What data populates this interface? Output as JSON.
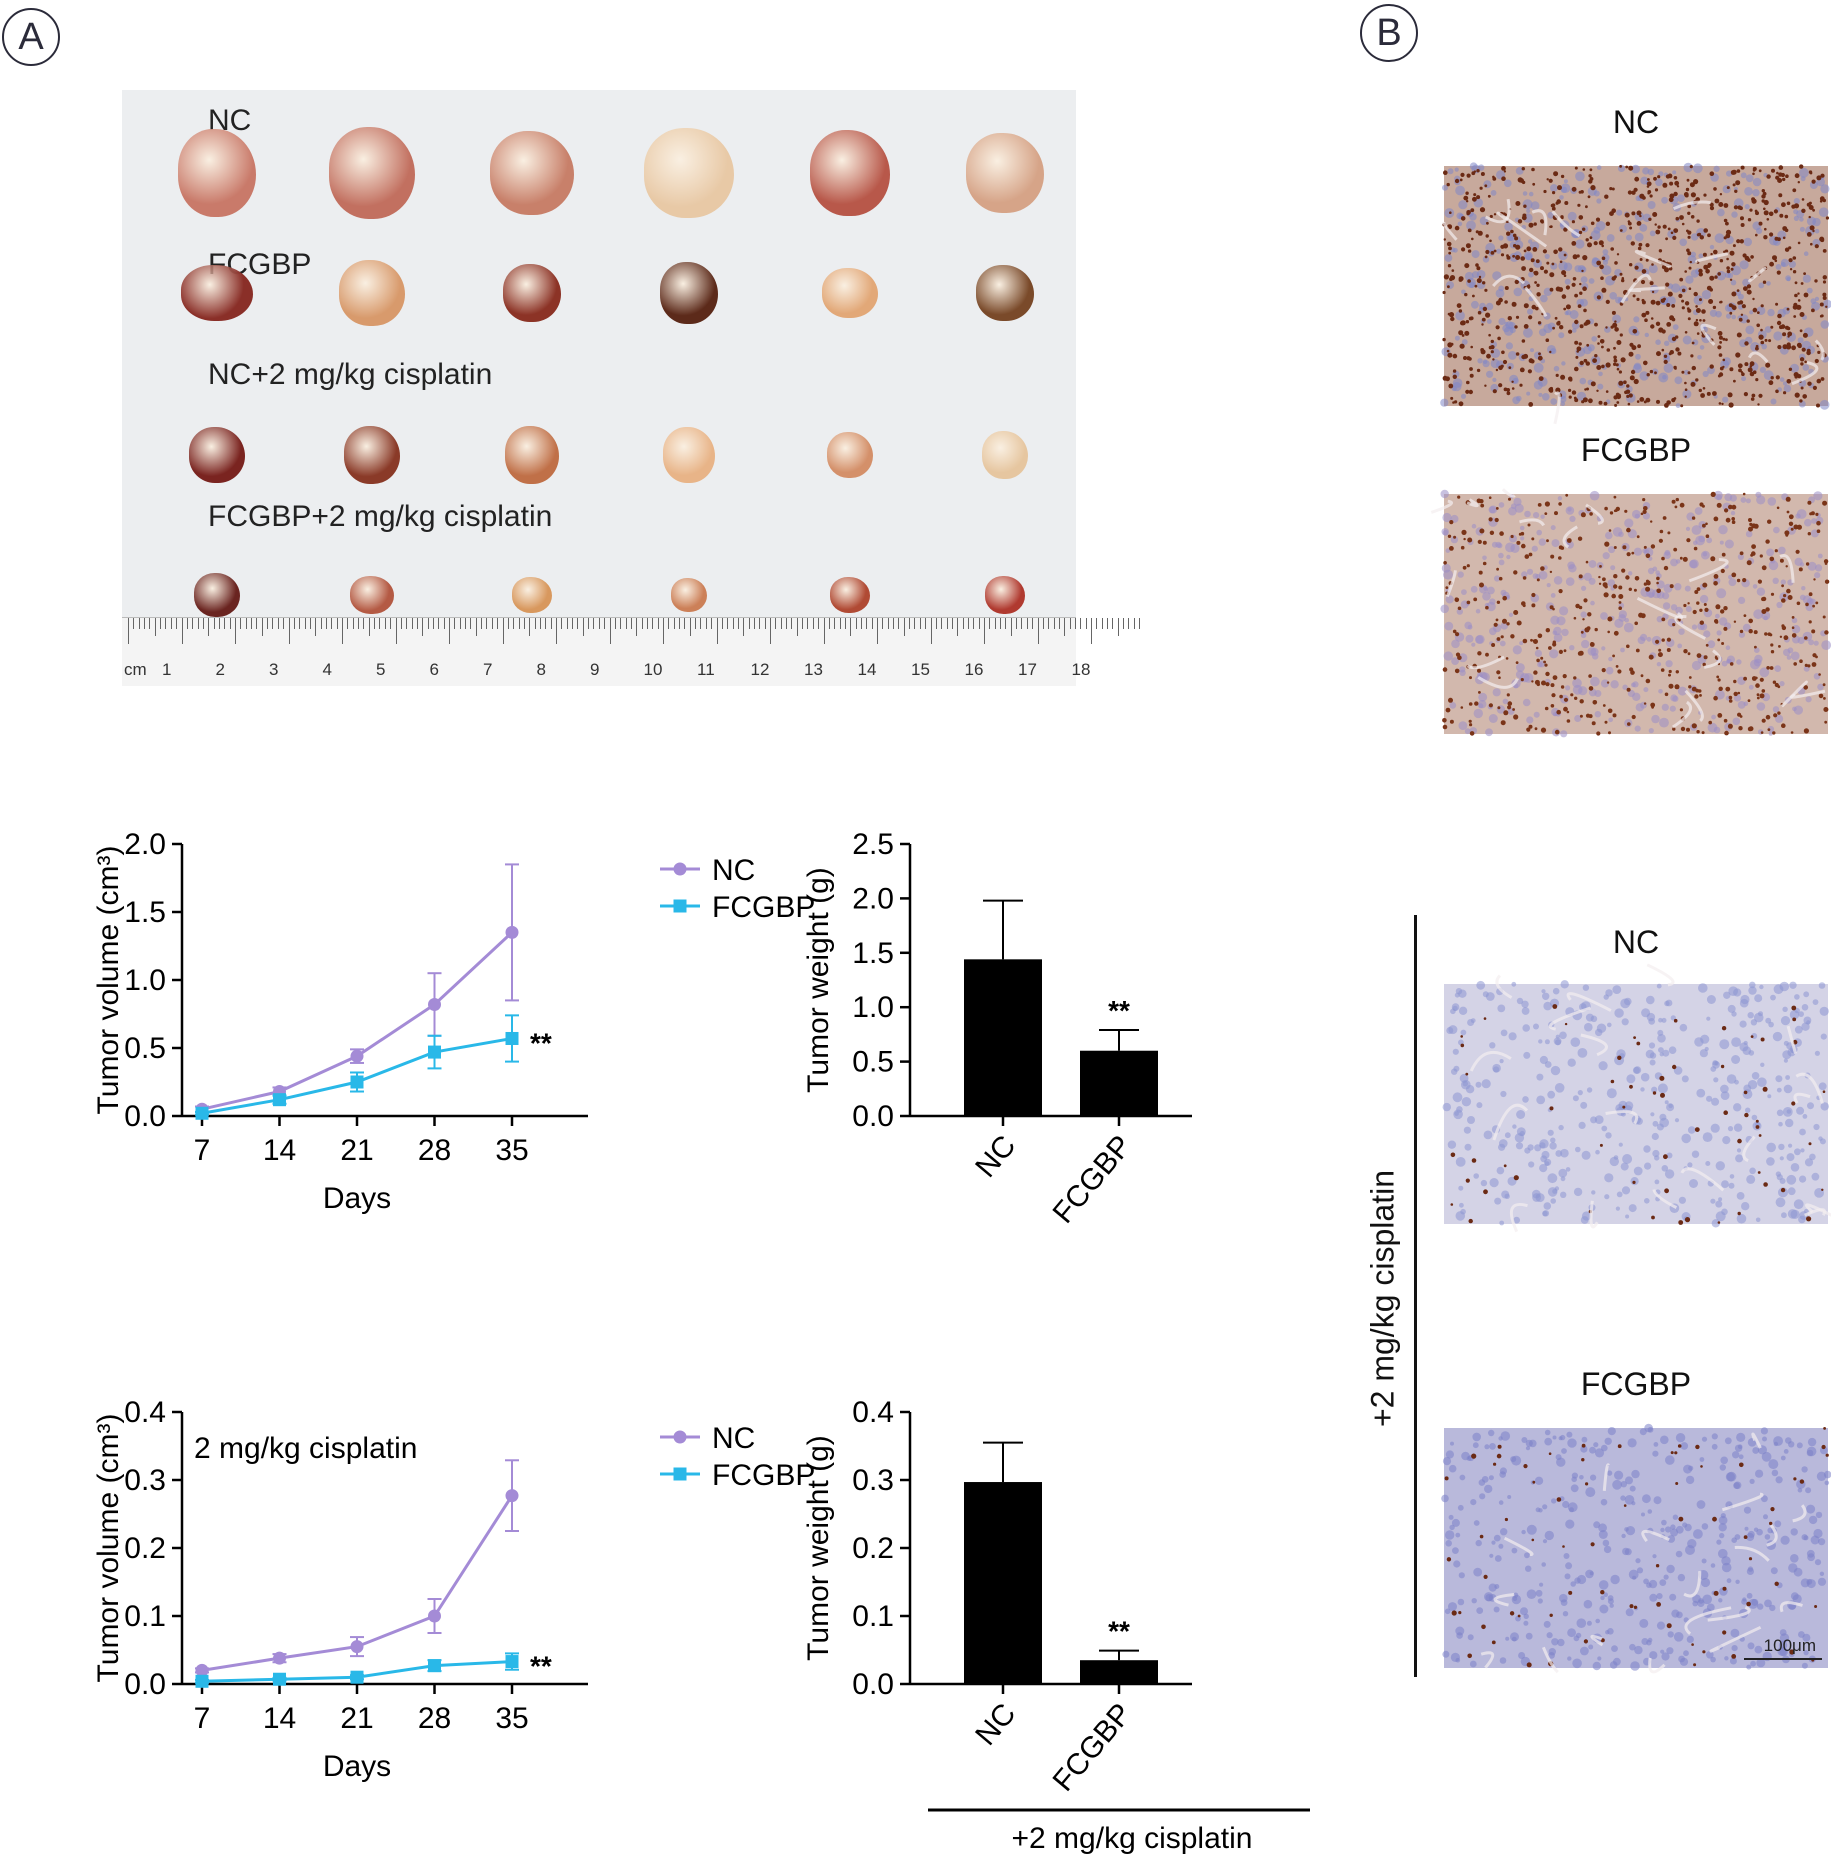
{
  "panels": {
    "a": "A",
    "b": "B"
  },
  "photo": {
    "rows": [
      "NC",
      "FCGBP",
      "NC+2 mg/kg cisplatin",
      "FCGBP+2 mg/kg cisplatin"
    ],
    "ruler_unit": "cm",
    "ruler_numbers": [
      "1",
      "2",
      "3",
      "4",
      "5",
      "6",
      "7",
      "8",
      "9",
      "10",
      "11",
      "12",
      "13",
      "14",
      "15",
      "16",
      "17",
      "18"
    ]
  },
  "ihc": {
    "top_titles": [
      "NC",
      "FCGBP"
    ],
    "bottom_titles": [
      "NC",
      "FCGBP"
    ],
    "side_label": "+2 mg/kg cisplatin",
    "scale_bar": "100μm"
  },
  "chart_data": [
    {
      "type": "line",
      "xlabel": "Days",
      "ylabel": "Tumor volume (cm³)",
      "x": [
        7,
        14,
        21,
        28,
        35
      ],
      "ylim": [
        0,
        2.0
      ],
      "yticks": [
        "0.0",
        "0.5",
        "1.0",
        "1.5",
        "2.0"
      ],
      "annotation": "",
      "significance": "**",
      "legend_position": "top-right",
      "series": [
        {
          "name": "NC",
          "color": "#a48bd6",
          "marker": "circle",
          "values": [
            0.05,
            0.18,
            0.44,
            0.82,
            1.35
          ],
          "errors": [
            0.02,
            0.03,
            0.05,
            0.23,
            0.5
          ]
        },
        {
          "name": "FCGBP",
          "color": "#29b8e8",
          "marker": "square",
          "values": [
            0.02,
            0.12,
            0.25,
            0.47,
            0.57
          ],
          "errors": [
            0.01,
            0.03,
            0.07,
            0.12,
            0.17
          ]
        }
      ]
    },
    {
      "type": "bar",
      "ylabel": "Tumor weight (g)",
      "categories": [
        "NC",
        "FCGBP"
      ],
      "values": [
        1.44,
        0.6
      ],
      "errors": [
        0.54,
        0.19
      ],
      "ylim": [
        0,
        2.5
      ],
      "yticks": [
        "0.0",
        "0.5",
        "1.0",
        "1.5",
        "2.0",
        "2.5"
      ],
      "significance": [
        "",
        "**"
      ],
      "color": "#000000",
      "group_label": ""
    },
    {
      "type": "line",
      "xlabel": "Days",
      "ylabel": "Tumor volume (cm³)",
      "x": [
        7,
        14,
        21,
        28,
        35
      ],
      "ylim": [
        0,
        0.4
      ],
      "yticks": [
        "0.0",
        "0.1",
        "0.2",
        "0.3",
        "0.4"
      ],
      "annotation": "2 mg/kg cisplatin",
      "significance": "**",
      "legend_position": "top-right",
      "series": [
        {
          "name": "NC",
          "color": "#a48bd6",
          "marker": "circle",
          "values": [
            0.02,
            0.038,
            0.055,
            0.1,
            0.277
          ],
          "errors": [
            0.003,
            0.006,
            0.014,
            0.025,
            0.052
          ]
        },
        {
          "name": "FCGBP",
          "color": "#29b8e8",
          "marker": "square",
          "values": [
            0.004,
            0.007,
            0.01,
            0.027,
            0.033
          ],
          "errors": [
            0.002,
            0.002,
            0.003,
            0.008,
            0.012
          ]
        }
      ]
    },
    {
      "type": "bar",
      "ylabel": "Tumor weight (g)",
      "categories": [
        "NC",
        "FCGBP"
      ],
      "values": [
        0.297,
        0.035
      ],
      "errors": [
        0.058,
        0.014
      ],
      "ylim": [
        0,
        0.4
      ],
      "yticks": [
        "0.0",
        "0.1",
        "0.2",
        "0.3",
        "0.4"
      ],
      "significance": [
        "",
        "**"
      ],
      "color": "#000000",
      "group_label": "+2 mg/kg cisplatin"
    }
  ]
}
